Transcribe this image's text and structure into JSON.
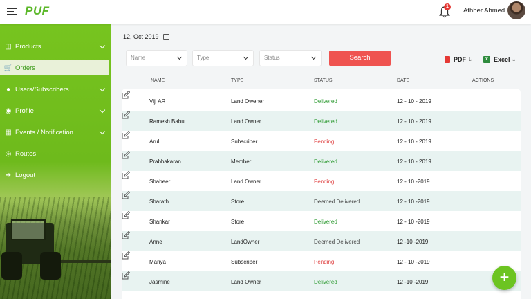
{
  "app": {
    "logo": "PUF"
  },
  "header": {
    "notification_count": "1",
    "user_name": "Athher Ahmed"
  },
  "sidebar": {
    "items": [
      {
        "label": "Products",
        "icon": "basket-icon",
        "expandable": true
      },
      {
        "label": "Orders",
        "icon": "cart-icon",
        "expandable": false,
        "active": true
      },
      {
        "label": "Users/Subscribers",
        "icon": "users-icon",
        "expandable": true
      },
      {
        "label": "Profile",
        "icon": "profile-icon",
        "expandable": true
      },
      {
        "label": "Events / Notification",
        "icon": "calendar-icon",
        "expandable": true
      },
      {
        "label": "Routes",
        "icon": "routes-icon",
        "expandable": false
      },
      {
        "label": "Logout",
        "icon": "logout-icon",
        "expandable": false
      }
    ]
  },
  "main": {
    "date": "12, Oct 2019",
    "filters": {
      "name_placeholder": "Name",
      "type_placeholder": "Type",
      "status_placeholder": "Status",
      "search_label": "Search"
    },
    "export": {
      "pdf_label": "PDF",
      "excel_label": "Excel"
    },
    "table": {
      "headers": {
        "name": "NAME",
        "type": "TYPE",
        "status": "STATUS",
        "date": "DATE",
        "actions": "ACTIONS"
      },
      "rows": [
        {
          "name": "Viji AR",
          "type": "Land Owener",
          "status": "Delivered",
          "date": "12 - 10 - 2019"
        },
        {
          "name": "Ramesh Babu",
          "type": "Land Owner",
          "status": "Delivered",
          "date": "12 - 10 - 2019"
        },
        {
          "name": "Arul",
          "type": "Subscriber",
          "status": "Pending",
          "date": "12 - 10 - 2019"
        },
        {
          "name": " Prabhakaran",
          "type": "Member",
          "status": "Delivered",
          "date": "12 - 10 - 2019"
        },
        {
          "name": "Shabeer",
          "type": "Land Owner",
          "status": "Pending",
          "date": "12 - 10 -2019"
        },
        {
          "name": "Sharath",
          "type": "Store",
          "status": "Deemed Delivered",
          "date": "12 - 10 -2019"
        },
        {
          "name": "Shankar",
          "type": "Store",
          "status": "Delivered",
          "date": "12 - 10 -2019"
        },
        {
          "name": "Anne",
          "type": "LandOwner",
          "status": "Deemed Delivered",
          "date": "12 -10 -2019"
        },
        {
          "name": "Mariya",
          "type": "Subscriber",
          "status": "Pending",
          "date": "12 - 10 -2019"
        },
        {
          "name": "Jasmine",
          "type": "Land  Owner",
          "status": "Delivered",
          "date": "12 -10 -2019"
        }
      ]
    },
    "fab_label": "+"
  },
  "colors": {
    "brand_green": "#6cc421",
    "search_red": "#ef5350",
    "delivered": "#2e9b33",
    "pending": "#e04545"
  }
}
